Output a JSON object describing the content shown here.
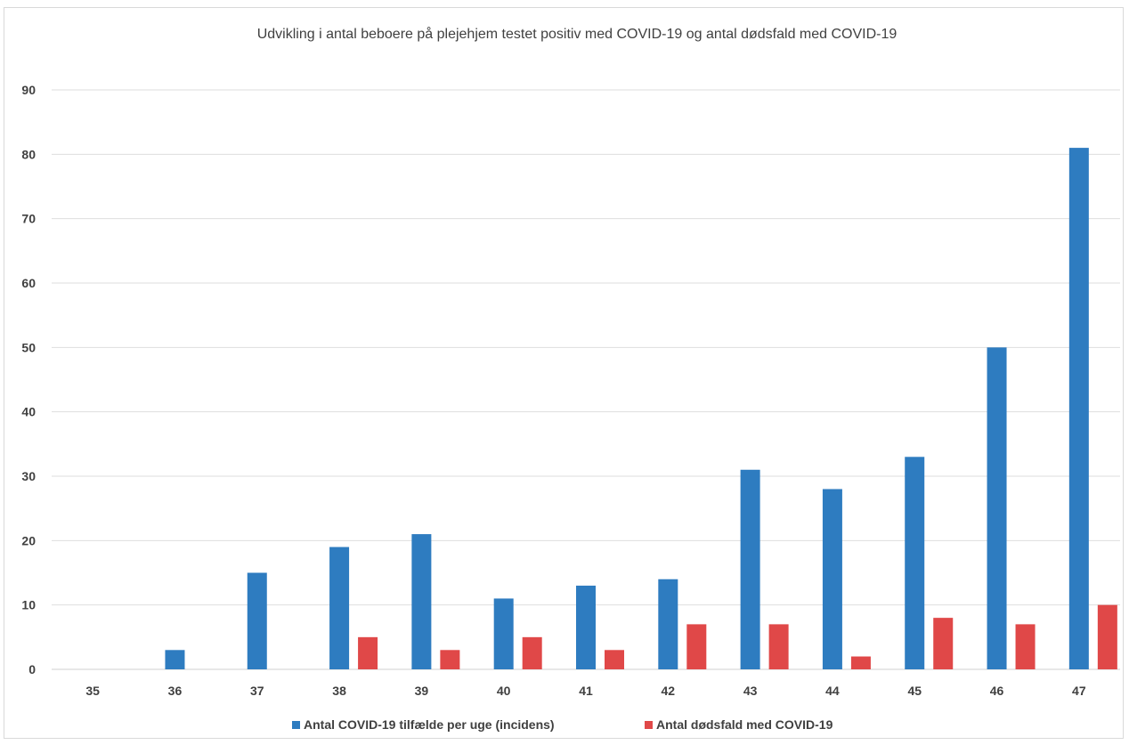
{
  "chart_data": {
    "type": "bar",
    "title": "Udvikling i antal beboere på plejehjem testet positiv med COVID-19 og antal dødsfald med COVID-19",
    "xlabel": "",
    "ylabel": "",
    "categories": [
      "35",
      "36",
      "37",
      "38",
      "39",
      "40",
      "41",
      "42",
      "43",
      "44",
      "45",
      "46",
      "47"
    ],
    "series": [
      {
        "name": "Antal COVID-19 tilfælde per uge (incidens)",
        "color": "#2e7cc0",
        "values": [
          0,
          3,
          15,
          19,
          21,
          11,
          13,
          14,
          31,
          28,
          33,
          50,
          81
        ]
      },
      {
        "name": "Antal dødsfald med COVID-19",
        "color": "#e04848",
        "values": [
          0,
          0,
          0,
          5,
          3,
          5,
          3,
          7,
          7,
          2,
          8,
          7,
          10
        ]
      }
    ],
    "ylim": [
      0,
      90
    ],
    "yticks": [
      "0",
      "10",
      "20",
      "30",
      "40",
      "50",
      "60",
      "70",
      "80",
      "90"
    ],
    "grid": true,
    "legend_position": "bottom"
  }
}
